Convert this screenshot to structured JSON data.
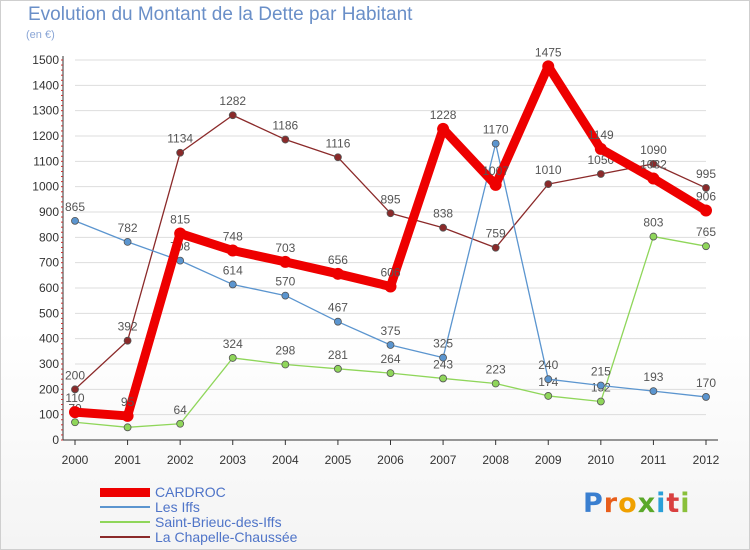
{
  "title": "Evolution du Montant de la Dette par Habitant",
  "subtitle": "(en €)",
  "brand": "Proxiti",
  "colors": {
    "title": "#6a8fc8",
    "axis": "#333333",
    "grid": "#dddddd",
    "tick_text": "#333333",
    "value_text": "#555555",
    "brand_letters": [
      "#3a7fd0",
      "#e85d1a",
      "#f0a000",
      "#5aa82a",
      "#2a9fd8",
      "#d94040",
      "#8ac03a"
    ]
  },
  "chart_data": {
    "type": "line",
    "title": "Evolution du Montant de la Dette par Habitant",
    "subtitle": "(en €)",
    "x": [
      "2000",
      "2001",
      "2002",
      "2003",
      "2004",
      "2005",
      "2006",
      "2007",
      "2008",
      "2009",
      "2010",
      "2011",
      "2012"
    ],
    "ylim": [
      0,
      1500
    ],
    "yticks": [
      0,
      100,
      200,
      300,
      400,
      500,
      600,
      700,
      800,
      900,
      1000,
      1100,
      1200,
      1300,
      1400,
      1500
    ],
    "grid": true,
    "legend": "bottom-left",
    "series": [
      {
        "name": "La Chapelle-Chaussée",
        "color": "#8b2a2a",
        "values": [
          200,
          392,
          1134,
          1282,
          1186,
          1116,
          895,
          838,
          759,
          1010,
          1050,
          1090,
          995
        ],
        "labels": [
          "200",
          "392",
          "1134",
          "1282",
          "1186",
          "1116",
          "895",
          "838",
          "759",
          "1010",
          "1050",
          "1090",
          "995"
        ]
      },
      {
        "name": "Saint-Brieuc-des-Iffs",
        "color": "#8fd65a",
        "values": [
          70,
          50,
          64,
          324,
          298,
          281,
          264,
          243,
          223,
          174,
          152,
          803,
          765
        ],
        "labels": [
          "70",
          "",
          "64",
          "324",
          "298",
          "281",
          "264",
          "243",
          "223",
          "174",
          "152",
          "803",
          "765"
        ]
      },
      {
        "name": "Les Iffs",
        "color": "#5b95cf",
        "values": [
          865,
          782,
          708,
          614,
          570,
          467,
          375,
          325,
          1170,
          240,
          215,
          193,
          170
        ],
        "labels": [
          "865",
          "782",
          "708",
          "614",
          "570",
          "467",
          "375",
          "325",
          "1170",
          "240",
          "215",
          "193",
          "170"
        ]
      },
      {
        "name": "CARDROC",
        "color": "#ee0000",
        "values": [
          110,
          95,
          815,
          748,
          703,
          656,
          606,
          1228,
          1007,
          1475,
          1149,
          1032,
          906
        ],
        "labels": [
          "110",
          "95",
          "815",
          "748",
          "703",
          "656",
          "606",
          "1228",
          "1007",
          "1475",
          "1149",
          "1032",
          "906"
        ]
      }
    ],
    "legend_order": [
      "CARDROC",
      "Les Iffs",
      "Saint-Brieuc-des-Iffs",
      "La Chapelle-Chaussée"
    ]
  }
}
